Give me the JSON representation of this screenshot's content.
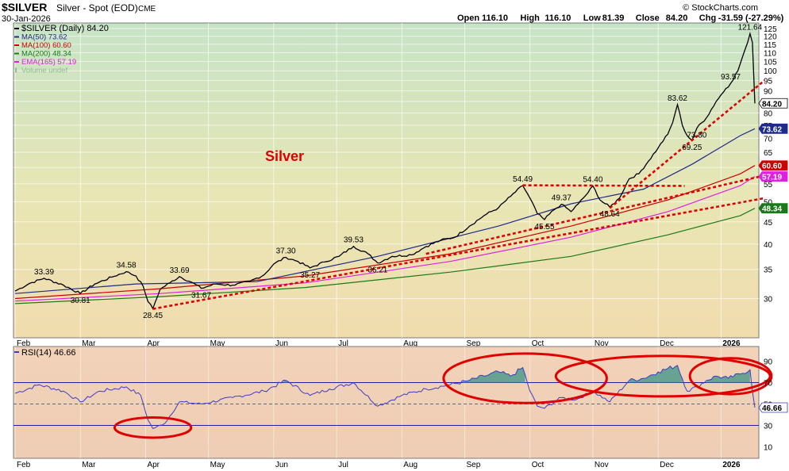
{
  "header": {
    "symbol": "$SILVER",
    "description": "Silver - Spot (EOD)",
    "exchange": "CME",
    "date": "30-Jan-2026",
    "credit": "© StockCharts.com",
    "ohlc": [
      {
        "label": "Open",
        "value": "116.10"
      },
      {
        "label": "High",
        "value": "116.10"
      },
      {
        "label": "Low",
        "value": "81.39"
      },
      {
        "label": "Close",
        "value": "84.20"
      },
      {
        "label": "Chg",
        "value": "-31.59 (-27.29%)"
      }
    ]
  },
  "colors": {
    "price": "#000000",
    "ma50": "#1e2a8c",
    "ma100": "#cc0000",
    "ma200": "#1a7a1a",
    "ema165": "#e020e0",
    "volume": "#8fbc8f",
    "rsi": "#3c3cc8",
    "trend": "#e00000"
  },
  "chart_data": [
    {
      "type": "line",
      "panel": "price",
      "legend": [
        {
          "key": "price",
          "text": "$SILVER (Daily) 84.20"
        },
        {
          "key": "ma50",
          "text": "MA(50) 73.62"
        },
        {
          "key": "ma100",
          "text": "MA(100) 60.60"
        },
        {
          "key": "ma200",
          "text": "MA(200) 48.34"
        },
        {
          "key": "ema165",
          "text": "EMA(165) 57.19"
        },
        {
          "key": "volume",
          "text": "Volume undef"
        }
      ],
      "annotation_title": "Silver",
      "x_labels": [
        "Feb",
        "Mar",
        "Apr",
        "May",
        "Jun",
        "Jul",
        "Aug",
        "Sep",
        "Oct",
        "Nov",
        "Dec",
        "2026"
      ],
      "ylim": [
        25,
        125
      ],
      "yscale": "log",
      "y_ticks": [
        30,
        35,
        40,
        45,
        50,
        55,
        60,
        65,
        70,
        75,
        80,
        85,
        90,
        95,
        100,
        105,
        110,
        115,
        120,
        125
      ],
      "price_series": [
        {
          "t": 0,
          "v": 31.2
        },
        {
          "t": 6,
          "v": 32.5
        },
        {
          "t": 12,
          "v": 33.39
        },
        {
          "t": 20,
          "v": 32.2
        },
        {
          "t": 27,
          "v": 30.81
        },
        {
          "t": 33,
          "v": 32.4
        },
        {
          "t": 40,
          "v": 33.6
        },
        {
          "t": 46,
          "v": 34.58
        },
        {
          "t": 50,
          "v": 33.8
        },
        {
          "t": 53,
          "v": 32.0
        },
        {
          "t": 55,
          "v": 29.5
        },
        {
          "t": 57,
          "v": 28.45
        },
        {
          "t": 60,
          "v": 31.5
        },
        {
          "t": 64,
          "v": 32.6
        },
        {
          "t": 68,
          "v": 33.69
        },
        {
          "t": 73,
          "v": 32.7
        },
        {
          "t": 77,
          "v": 31.67
        },
        {
          "t": 83,
          "v": 32.4
        },
        {
          "t": 90,
          "v": 32.2
        },
        {
          "t": 97,
          "v": 32.8
        },
        {
          "t": 103,
          "v": 34.0
        },
        {
          "t": 107,
          "v": 36.0
        },
        {
          "t": 112,
          "v": 37.3
        },
        {
          "t": 117,
          "v": 36.5
        },
        {
          "t": 122,
          "v": 35.27
        },
        {
          "t": 128,
          "v": 36.4
        },
        {
          "t": 134,
          "v": 37.5
        },
        {
          "t": 140,
          "v": 39.53
        },
        {
          "t": 146,
          "v": 38.0
        },
        {
          "t": 150,
          "v": 36.21
        },
        {
          "t": 156,
          "v": 37.5
        },
        {
          "t": 164,
          "v": 37.8
        },
        {
          "t": 170,
          "v": 39.5
        },
        {
          "t": 176,
          "v": 40.8
        },
        {
          "t": 182,
          "v": 41.5
        },
        {
          "t": 188,
          "v": 44.0
        },
        {
          "t": 194,
          "v": 46.5
        },
        {
          "t": 200,
          "v": 48.5
        },
        {
          "t": 205,
          "v": 51.5
        },
        {
          "t": 210,
          "v": 54.49
        },
        {
          "t": 213,
          "v": 51.0
        },
        {
          "t": 216,
          "v": 47.0
        },
        {
          "t": 219,
          "v": 45.55
        },
        {
          "t": 223,
          "v": 48.0
        },
        {
          "t": 226,
          "v": 49.37
        },
        {
          "t": 230,
          "v": 47.5
        },
        {
          "t": 233,
          "v": 49.5
        },
        {
          "t": 237,
          "v": 52.5
        },
        {
          "t": 239,
          "v": 54.4
        },
        {
          "t": 242,
          "v": 50.5
        },
        {
          "t": 246,
          "v": 48.64
        },
        {
          "t": 250,
          "v": 51.0
        },
        {
          "t": 254,
          "v": 56.5
        },
        {
          "t": 258,
          "v": 58.0
        },
        {
          "t": 262,
          "v": 62.0
        },
        {
          "t": 266,
          "v": 66.5
        },
        {
          "t": 270,
          "v": 71.5
        },
        {
          "t": 272,
          "v": 76.0
        },
        {
          "t": 274,
          "v": 83.62
        },
        {
          "t": 276,
          "v": 75.0
        },
        {
          "t": 278,
          "v": 71.0
        },
        {
          "t": 280,
          "v": 69.25
        },
        {
          "t": 282,
          "v": 73.8
        },
        {
          "t": 286,
          "v": 78.0
        },
        {
          "t": 290,
          "v": 85.0
        },
        {
          "t": 294,
          "v": 91.0
        },
        {
          "t": 296,
          "v": 93.57
        },
        {
          "t": 299,
          "v": 100.0
        },
        {
          "t": 301,
          "v": 108.0
        },
        {
          "t": 303,
          "v": 116.0
        },
        {
          "t": 304,
          "v": 121.64
        },
        {
          "t": 305,
          "v": 116.1
        },
        {
          "t": 306,
          "v": 84.2
        }
      ],
      "ma_series": {
        "ma50": [
          {
            "t": 0,
            "v": 30.8
          },
          {
            "t": 50,
            "v": 32.4
          },
          {
            "t": 100,
            "v": 32.8
          },
          {
            "t": 150,
            "v": 37.5
          },
          {
            "t": 200,
            "v": 44.0
          },
          {
            "t": 230,
            "v": 49.5
          },
          {
            "t": 260,
            "v": 53.5
          },
          {
            "t": 280,
            "v": 61.0
          },
          {
            "t": 300,
            "v": 71.0
          },
          {
            "t": 306,
            "v": 73.62
          }
        ],
        "ma100": [
          {
            "t": 0,
            "v": 30.0
          },
          {
            "t": 60,
            "v": 31.6
          },
          {
            "t": 120,
            "v": 33.8
          },
          {
            "t": 180,
            "v": 38.0
          },
          {
            "t": 230,
            "v": 44.0
          },
          {
            "t": 270,
            "v": 50.5
          },
          {
            "t": 300,
            "v": 58.0
          },
          {
            "t": 306,
            "v": 60.6
          }
        ],
        "ema165": [
          {
            "t": 0,
            "v": 29.6
          },
          {
            "t": 60,
            "v": 30.8
          },
          {
            "t": 120,
            "v": 32.6
          },
          {
            "t": 180,
            "v": 36.5
          },
          {
            "t": 230,
            "v": 41.5
          },
          {
            "t": 270,
            "v": 47.5
          },
          {
            "t": 300,
            "v": 54.5
          },
          {
            "t": 306,
            "v": 57.19
          }
        ],
        "ma200": [
          {
            "t": 0,
            "v": 29.2
          },
          {
            "t": 60,
            "v": 30.3
          },
          {
            "t": 120,
            "v": 31.8
          },
          {
            "t": 180,
            "v": 34.5
          },
          {
            "t": 230,
            "v": 37.5
          },
          {
            "t": 270,
            "v": 42.0
          },
          {
            "t": 300,
            "v": 46.5
          },
          {
            "t": 306,
            "v": 48.34
          }
        ]
      },
      "trendlines": [
        {
          "from": {
            "t": 57,
            "v": 28.4
          },
          "to": {
            "t": 310,
            "v": 51.0
          }
        },
        {
          "from": {
            "t": 170,
            "v": 38.0
          },
          "to": {
            "t": 310,
            "v": 57.5
          }
        },
        {
          "from": {
            "t": 246,
            "v": 48.4
          },
          "to": {
            "t": 310,
            "v": 95.0
          }
        },
        {
          "from": {
            "t": 210,
            "v": 54.6
          },
          "to": {
            "t": 277,
            "v": 54.4
          }
        }
      ],
      "point_labels": [
        {
          "t": 12,
          "v": 33.39,
          "text": "33.39",
          "pos": "above"
        },
        {
          "t": 27,
          "v": 30.81,
          "text": "30.81",
          "pos": "below"
        },
        {
          "t": 46,
          "v": 34.58,
          "text": "34.58",
          "pos": "above"
        },
        {
          "t": 57,
          "v": 28.45,
          "text": "28.45",
          "pos": "below"
        },
        {
          "t": 68,
          "v": 33.69,
          "text": "33.69",
          "pos": "above"
        },
        {
          "t": 77,
          "v": 31.67,
          "text": "31.67",
          "pos": "below"
        },
        {
          "t": 112,
          "v": 37.3,
          "text": "37.30",
          "pos": "above"
        },
        {
          "t": 122,
          "v": 35.27,
          "text": "35.27",
          "pos": "below"
        },
        {
          "t": 140,
          "v": 39.53,
          "text": "39.53",
          "pos": "above"
        },
        {
          "t": 150,
          "v": 36.21,
          "text": "36.21",
          "pos": "below"
        },
        {
          "t": 210,
          "v": 54.49,
          "text": "54.49",
          "pos": "above"
        },
        {
          "t": 226,
          "v": 49.37,
          "text": "49.37",
          "pos": "above"
        },
        {
          "t": 219,
          "v": 45.55,
          "text": "45.55",
          "pos": "below"
        },
        {
          "t": 239,
          "v": 54.4,
          "text": "54.40",
          "pos": "above"
        },
        {
          "t": 246,
          "v": 48.64,
          "text": "48.64",
          "pos": "below"
        },
        {
          "t": 274,
          "v": 83.62,
          "text": "83.62",
          "pos": "above"
        },
        {
          "t": 282,
          "v": 73.8,
          "text": "73.80",
          "pos": "below"
        },
        {
          "t": 280,
          "v": 69.25,
          "text": "69.25",
          "pos": "below"
        },
        {
          "t": 296,
          "v": 93.57,
          "text": "93.57",
          "pos": "above"
        },
        {
          "t": 304,
          "v": 121.64,
          "text": "121.64",
          "pos": "above"
        }
      ],
      "axis_tags": [
        {
          "key": "price",
          "v": 84.2,
          "text": "84.20"
        },
        {
          "key": "ma50",
          "v": 73.62,
          "text": "73.62"
        },
        {
          "key": "ma100",
          "v": 60.6,
          "text": "60.60"
        },
        {
          "key": "ema165",
          "v": 57.19,
          "text": "57.19"
        },
        {
          "key": "ma200",
          "v": 48.34,
          "text": "48.34"
        }
      ]
    },
    {
      "type": "line",
      "panel": "rsi",
      "legend": [
        {
          "key": "rsi",
          "text": "RSI(14) 46.66"
        }
      ],
      "ylim": [
        0,
        100
      ],
      "y_ticks": [
        10,
        30,
        50,
        70,
        90
      ],
      "reference_lines": [
        30,
        50,
        70
      ],
      "series": [
        {
          "t": 0,
          "v": 60
        },
        {
          "t": 10,
          "v": 68
        },
        {
          "t": 20,
          "v": 62
        },
        {
          "t": 27,
          "v": 52
        },
        {
          "t": 35,
          "v": 62
        },
        {
          "t": 46,
          "v": 66
        },
        {
          "t": 52,
          "v": 58
        },
        {
          "t": 55,
          "v": 35
        },
        {
          "t": 57,
          "v": 27
        },
        {
          "t": 62,
          "v": 32
        },
        {
          "t": 68,
          "v": 52
        },
        {
          "t": 77,
          "v": 50
        },
        {
          "t": 90,
          "v": 56
        },
        {
          "t": 103,
          "v": 62
        },
        {
          "t": 112,
          "v": 72
        },
        {
          "t": 122,
          "v": 58
        },
        {
          "t": 130,
          "v": 64
        },
        {
          "t": 140,
          "v": 70
        },
        {
          "t": 150,
          "v": 48
        },
        {
          "t": 160,
          "v": 58
        },
        {
          "t": 170,
          "v": 64
        },
        {
          "t": 180,
          "v": 68
        },
        {
          "t": 188,
          "v": 72
        },
        {
          "t": 194,
          "v": 76
        },
        {
          "t": 200,
          "v": 80
        },
        {
          "t": 205,
          "v": 76
        },
        {
          "t": 210,
          "v": 84
        },
        {
          "t": 213,
          "v": 62
        },
        {
          "t": 216,
          "v": 48
        },
        {
          "t": 219,
          "v": 46
        },
        {
          "t": 226,
          "v": 56
        },
        {
          "t": 232,
          "v": 54
        },
        {
          "t": 239,
          "v": 62
        },
        {
          "t": 246,
          "v": 52
        },
        {
          "t": 254,
          "v": 72
        },
        {
          "t": 260,
          "v": 74
        },
        {
          "t": 266,
          "v": 80
        },
        {
          "t": 274,
          "v": 86
        },
        {
          "t": 278,
          "v": 62
        },
        {
          "t": 282,
          "v": 66
        },
        {
          "t": 286,
          "v": 72
        },
        {
          "t": 290,
          "v": 76
        },
        {
          "t": 295,
          "v": 74
        },
        {
          "t": 300,
          "v": 78
        },
        {
          "t": 304,
          "v": 82
        },
        {
          "t": 305,
          "v": 62
        },
        {
          "t": 306,
          "v": 46.66
        }
      ],
      "highlight_rings": [
        {
          "t_center": 211,
          "v_center": 74,
          "t_span": 32,
          "v_span": 44
        },
        {
          "t_center": 268,
          "v_center": 76,
          "t_span": 42,
          "v_span": 36
        },
        {
          "t_center": 296,
          "v_center": 76,
          "t_span": 16,
          "v_span": 32
        },
        {
          "t_center": 57,
          "v_center": 28,
          "t_span": 15,
          "v_span": 18
        }
      ],
      "x_labels": [
        "Feb",
        "Mar",
        "Apr",
        "May",
        "Jun",
        "Jul",
        "Aug",
        "Sep",
        "Oct",
        "Nov",
        "Dec",
        "2026"
      ],
      "axis_tag": {
        "v": 46.66,
        "text": "46.66"
      }
    }
  ]
}
